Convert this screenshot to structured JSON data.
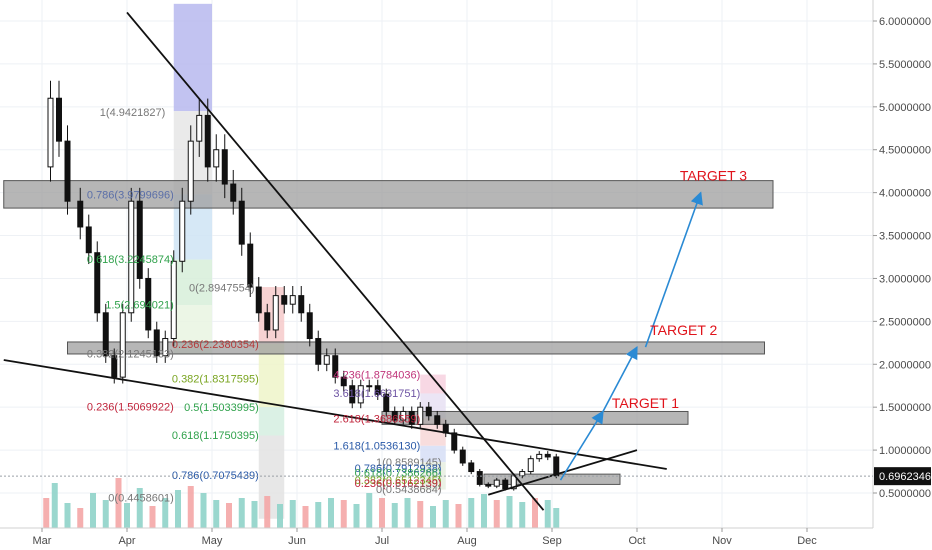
{
  "chart_data": {
    "type": "candlestick",
    "x_ticks": [
      "Mar",
      "Apr",
      "May",
      "Jun",
      "Jul",
      "Aug",
      "Sep",
      "Oct",
      "Nov",
      "Dec"
    ],
    "y_ticks": [
      "6.0000000",
      "5.5000000",
      "5.0000000",
      "4.5000000",
      "4.0000000",
      "3.5000000",
      "3.0000000",
      "2.5000000",
      "2.0000000",
      "1.5000000",
      "1.0000000",
      "0.5000000"
    ],
    "y_tick_values": [
      6.0,
      5.5,
      5.0,
      4.5,
      4.0,
      3.5,
      3.0,
      2.5,
      2.0,
      1.5,
      1.0,
      0.5
    ],
    "ylim": [
      0.2,
      6.2
    ],
    "current_price": {
      "label": "0.6962346",
      "value": 0.6962346
    },
    "x_month_index": [
      0,
      1,
      2,
      3,
      4,
      5,
      6,
      7,
      8,
      9
    ],
    "price_series": [
      [
        0.0,
        4.3
      ],
      [
        0.1,
        5.1
      ],
      [
        0.2,
        4.6
      ],
      [
        0.3,
        3.9
      ],
      [
        0.45,
        3.6
      ],
      [
        0.55,
        3.3
      ],
      [
        0.65,
        2.6
      ],
      [
        0.75,
        2.1
      ],
      [
        0.85,
        1.85
      ],
      [
        0.95,
        2.6
      ],
      [
        1.05,
        3.9
      ],
      [
        1.15,
        3.0
      ],
      [
        1.25,
        2.4
      ],
      [
        1.35,
        2.1
      ],
      [
        1.45,
        2.3
      ],
      [
        1.55,
        3.2
      ],
      [
        1.65,
        3.9
      ],
      [
        1.75,
        4.6
      ],
      [
        1.85,
        4.9
      ],
      [
        1.95,
        4.3
      ],
      [
        2.05,
        4.5
      ],
      [
        2.15,
        4.1
      ],
      [
        2.25,
        3.9
      ],
      [
        2.35,
        3.4
      ],
      [
        2.45,
        2.9
      ],
      [
        2.55,
        2.6
      ],
      [
        2.65,
        2.4
      ],
      [
        2.75,
        2.8
      ],
      [
        2.85,
        2.7
      ],
      [
        2.95,
        2.8
      ],
      [
        3.05,
        2.6
      ],
      [
        3.15,
        2.3
      ],
      [
        3.25,
        2.0
      ],
      [
        3.35,
        2.1
      ],
      [
        3.45,
        1.85
      ],
      [
        3.55,
        1.75
      ],
      [
        3.65,
        1.55
      ],
      [
        3.75,
        1.75
      ],
      [
        3.85,
        1.75
      ],
      [
        3.95,
        1.65
      ],
      [
        4.05,
        1.45
      ],
      [
        4.15,
        1.35
      ],
      [
        4.25,
        1.45
      ],
      [
        4.35,
        1.3
      ],
      [
        4.45,
        1.5
      ],
      [
        4.55,
        1.4
      ],
      [
        4.65,
        1.3
      ],
      [
        4.75,
        1.2
      ],
      [
        4.85,
        1.0
      ],
      [
        4.95,
        0.85
      ],
      [
        5.05,
        0.75
      ],
      [
        5.15,
        0.6
      ],
      [
        5.25,
        0.58
      ],
      [
        5.35,
        0.65
      ],
      [
        5.45,
        0.55
      ],
      [
        5.55,
        0.7
      ],
      [
        5.65,
        0.75
      ],
      [
        5.75,
        0.9
      ],
      [
        5.85,
        0.95
      ],
      [
        5.95,
        0.92
      ],
      [
        6.05,
        0.7
      ]
    ],
    "volume_series": [
      [
        0.05,
        30
      ],
      [
        0.15,
        45
      ],
      [
        0.3,
        25
      ],
      [
        0.45,
        20
      ],
      [
        0.6,
        35
      ],
      [
        0.75,
        28
      ],
      [
        0.9,
        50
      ],
      [
        1.0,
        25
      ],
      [
        1.15,
        40
      ],
      [
        1.3,
        22
      ],
      [
        1.45,
        30
      ],
      [
        1.6,
        38
      ],
      [
        1.75,
        42
      ],
      [
        1.9,
        35
      ],
      [
        2.05,
        28
      ],
      [
        2.2,
        25
      ],
      [
        2.35,
        30
      ],
      [
        2.5,
        27
      ],
      [
        2.65,
        32
      ],
      [
        2.8,
        24
      ],
      [
        2.95,
        28
      ],
      [
        3.1,
        22
      ],
      [
        3.25,
        26
      ],
      [
        3.4,
        30
      ],
      [
        3.55,
        28
      ],
      [
        3.7,
        24
      ],
      [
        3.85,
        35
      ],
      [
        4.0,
        30
      ],
      [
        4.15,
        25
      ],
      [
        4.3,
        30
      ],
      [
        4.45,
        27
      ],
      [
        4.6,
        22
      ],
      [
        4.75,
        28
      ],
      [
        4.9,
        24
      ],
      [
        5.05,
        30
      ],
      [
        5.2,
        34
      ],
      [
        5.35,
        28
      ],
      [
        5.5,
        32
      ],
      [
        5.65,
        26
      ],
      [
        5.8,
        30
      ],
      [
        5.95,
        28
      ],
      [
        6.05,
        20
      ]
    ],
    "fib_labels": [
      {
        "text": "1(4.9421827)",
        "value": 4.9421827,
        "color": "#777777"
      },
      {
        "text": "0.786(3.9799696)",
        "value": 3.9799696,
        "color": "#5b6fa8"
      },
      {
        "text": "0.618(3.2245874)",
        "value": 3.2245874,
        "color": "#2fa14b"
      },
      {
        "text": "0(2.8947554)",
        "value": 2.8947554,
        "color": "#777777"
      },
      {
        "text": "1.5(2.694021)",
        "value": 2.694021,
        "color": "#2fa14b"
      },
      {
        "text": "0.382(2.1245133)",
        "value": 2.1245133,
        "color": "#777777"
      },
      {
        "text": "0.236(2.2380354)",
        "value": 2.2380354,
        "color": "#b53b3b"
      },
      {
        "text": "4.236(1.8784036)",
        "value": 1.8784036,
        "color": "#c0357a"
      },
      {
        "text": "0.382(1.8317595)",
        "value": 1.8317595,
        "color": "#7aa521"
      },
      {
        "text": "3.618(1.6631751)",
        "value": 1.6631751,
        "color": "#6d53a3"
      },
      {
        "text": "0.236(1.5069922)",
        "value": 1.5069922,
        "color": "#c0243b"
      },
      {
        "text": "0.5(1.5033995)",
        "value": 1.5033995,
        "color": "#2fa14b"
      },
      {
        "text": "2.618(1.3686559)",
        "value": 1.3686559,
        "color": "#c0243b"
      },
      {
        "text": "0.618(1.1750395)",
        "value": 1.1750395,
        "color": "#2fa14b"
      },
      {
        "text": "1.618(1.0536130)",
        "value": 1.053613,
        "color": "#2a5aa8"
      },
      {
        "text": "1(0.8589145)",
        "value": 0.8589145,
        "color": "#777777"
      },
      {
        "text": "0.786(0.7912938)",
        "value": 0.7912938,
        "color": "#2a5aa8"
      },
      {
        "text": "0.786(0.7075439)",
        "value": 0.7075439,
        "color": "#2a5aa8"
      },
      {
        "text": "0.618(0.7386266)",
        "value": 0.7386266,
        "color": "#2fa14b"
      },
      {
        "text": "0.382(0.6512345)",
        "value": 0.6512345,
        "color": "#7aa521"
      },
      {
        "text": "0.236(0.6162139)",
        "value": 0.6162139,
        "color": "#c0243b"
      },
      {
        "text": "0(0.5438684)",
        "value": 0.5438684,
        "color": "#777777"
      },
      {
        "text": "0(0.4458601)",
        "value": 0.4458601,
        "color": "#777777"
      }
    ],
    "zones": [
      {
        "x0": -0.45,
        "x1": 8.6,
        "y0": 3.82,
        "y1": 4.14
      },
      {
        "x0": 0.3,
        "x1": 8.5,
        "y0": 2.12,
        "y1": 2.26
      },
      {
        "x0": 4.0,
        "x1": 7.6,
        "y0": 1.3,
        "y1": 1.45
      },
      {
        "x0": 5.2,
        "x1": 6.8,
        "y0": 0.6,
        "y1": 0.72
      }
    ],
    "trendlines": [
      {
        "x0": 1.0,
        "y0": 6.1,
        "x1": 5.9,
        "y1": 0.3
      },
      {
        "x0": -0.45,
        "y0": 2.05,
        "x1": 7.35,
        "y1": 0.78
      },
      {
        "x0": 5.25,
        "y0": 0.48,
        "x1": 7.0,
        "y1": 1.0
      }
    ],
    "projection_arrows": [
      {
        "x0": 6.1,
        "y0": 0.65,
        "x1": 6.6,
        "y1": 1.45
      },
      {
        "x0": 6.6,
        "y0": 1.45,
        "x1": 7.0,
        "y1": 2.2
      },
      {
        "x0": 7.1,
        "y0": 2.2,
        "x1": 7.75,
        "y1": 4.0
      }
    ],
    "targets": [
      {
        "label": "TARGET 3",
        "value": 4.2
      },
      {
        "label": "TARGET 2",
        "value": 2.4
      },
      {
        "label": "TARGET 1",
        "value": 1.55
      }
    ]
  }
}
